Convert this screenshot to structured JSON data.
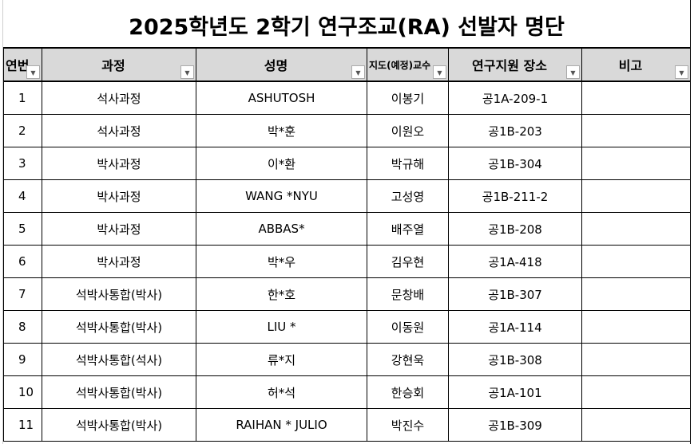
{
  "title": "2025학년도 2학기 연구조교(RA) 선발자 명단",
  "headers": [
    "연번",
    "과정",
    "성명",
    "지도(예정)교수",
    "연구지원 장소",
    "비고"
  ],
  "filter_icon": "dropdown-arrow-icon",
  "rows": [
    [
      "1",
      "석사과정",
      "ASHUTOSH",
      "이봉기",
      "공1A-209-1",
      ""
    ],
    [
      "2",
      "석사과정",
      "박*훈",
      "이원오",
      "공1B-203",
      ""
    ],
    [
      "3",
      "박사과정",
      "이*환",
      "박규해",
      "공1B-304",
      ""
    ],
    [
      "4",
      "박사과정",
      "WANG *NYU",
      "고성영",
      "공1B-211-2",
      ""
    ],
    [
      "5",
      "박사과정",
      "ABBAS*",
      "배주열",
      "공1B-208",
      ""
    ],
    [
      "6",
      "박사과정",
      "박*우",
      "김우현",
      "공1A-418",
      ""
    ],
    [
      "7",
      "석박사통합(박사)",
      "한*호",
      "문창배",
      "공1B-307",
      ""
    ],
    [
      "8",
      "석박사통합(박사)",
      "LIU *",
      "이동원",
      "공1A-114",
      ""
    ],
    [
      "9",
      "석박사통합(석사)",
      "류*지",
      "강현욱",
      "공1B-308",
      ""
    ],
    [
      "10",
      "석박사통합(박사)",
      "허*석",
      "한승회",
      "공1A-101",
      ""
    ],
    [
      "11",
      "석박사통합(박사)",
      "RAIHAN * JULIO",
      "박진수",
      "공1B-309",
      ""
    ]
  ]
}
